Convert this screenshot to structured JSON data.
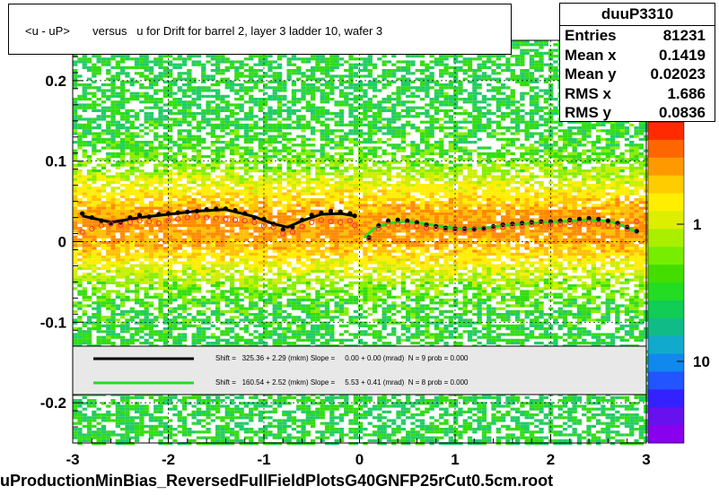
{
  "title": "<u - uP>       versus   u for Drift for barrel 2, layer 3 ladder 10, wafer 3",
  "footer": "uProductionMinBias_ReversedFullFieldPlotsG40GNFP25rCut0.5cm.root",
  "stats": {
    "name": "duuP3310",
    "rows": [
      {
        "label": "Entries",
        "value": "81231"
      },
      {
        "label": "Mean x",
        "value": "0.1419"
      },
      {
        "label": "Mean y",
        "value": "0.02023"
      },
      {
        "label": "RMS x",
        "value": "1.686"
      },
      {
        "label": "RMS y",
        "value": "0.0836"
      }
    ]
  },
  "legend": {
    "entries": [
      {
        "color": "#000000",
        "text": "Shift =   325.36 + 2.29 (mkm) Slope =     0.00 + 0.00 (mrad)  N = 9 prob = 0.000"
      },
      {
        "color": "#22dd22",
        "text": "Shift =   160.54 + 2.52 (mkm) Slope =     5.53 + 0.41 (mrad)  N = 8 prob = 0.000"
      }
    ]
  },
  "chart_data": {
    "type": "heatmap",
    "title": "<u - uP>       versus   u for Drift for barrel 2, layer 3 ladder 10, wafer 3",
    "xlim": [
      -3,
      3
    ],
    "ylim": [
      -0.25,
      0.25
    ],
    "x_ticks": [
      "-3",
      "-2",
      "-1",
      "0",
      "1",
      "2",
      "3"
    ],
    "y_ticks": [
      "-0.2",
      "-0.1",
      "0",
      "0.1",
      "0.2"
    ],
    "z_ticks": [
      "1",
      "10"
    ],
    "grid": true,
    "series": [
      {
        "type": "profile-black",
        "x": [
          -2.9,
          -2.8,
          -2.7,
          -2.6,
          -2.5,
          -2.4,
          -2.3,
          -2.2,
          -2.1,
          -2.0,
          -1.9,
          -1.8,
          -1.7,
          -1.6,
          -1.5,
          -1.4,
          -1.3,
          -1.2,
          -1.1,
          -1.0,
          -0.9,
          -0.8,
          -0.7,
          -0.6,
          -0.5,
          -0.4,
          -0.3,
          -0.2,
          -0.1,
          -0.05,
          0.1,
          0.2,
          0.3,
          0.4,
          0.5,
          0.6,
          0.7,
          0.8,
          0.9,
          1.0,
          1.1,
          1.2,
          1.3,
          1.4,
          1.5,
          1.6,
          1.7,
          1.8,
          1.9,
          2.0,
          2.1,
          2.2,
          2.3,
          2.4,
          2.5,
          2.6,
          2.7,
          2.8,
          2.9
        ],
        "y": [
          0.035,
          0.03,
          0.026,
          0.023,
          0.024,
          0.03,
          0.033,
          0.031,
          0.034,
          0.035,
          0.036,
          0.037,
          0.038,
          0.04,
          0.041,
          0.041,
          0.039,
          0.035,
          0.03,
          0.028,
          0.022,
          0.015,
          0.018,
          0.027,
          0.033,
          0.036,
          0.038,
          0.037,
          0.035,
          0.032,
          0.005,
          0.02,
          0.026,
          0.027,
          0.026,
          0.024,
          0.021,
          0.019,
          0.017,
          0.016,
          0.016,
          0.016,
          0.017,
          0.019,
          0.021,
          0.022,
          0.023,
          0.024,
          0.025,
          0.025,
          0.026,
          0.027,
          0.028,
          0.029,
          0.028,
          0.026,
          0.023,
          0.018,
          0.013
        ]
      },
      {
        "type": "profile-red",
        "x": [
          -2.9,
          -2.8,
          -2.7,
          -2.6,
          -2.5,
          -2.4,
          -2.3,
          -2.2,
          -2.1,
          -2.0,
          -1.9,
          -1.8,
          -1.7,
          -1.6,
          -1.5,
          -1.4,
          -1.3,
          -1.2,
          -1.1,
          -1.0,
          -0.9,
          -0.8,
          -0.7,
          -0.6,
          -0.5,
          -0.4,
          -0.3,
          -0.2,
          -0.1,
          -0.05,
          0.1,
          0.2,
          0.3,
          0.4,
          0.5,
          0.6,
          0.7,
          0.8,
          0.9,
          1.0,
          1.1,
          1.2,
          1.3,
          1.4,
          1.5,
          1.6,
          1.7,
          1.8,
          1.9,
          2.0,
          2.1,
          2.2,
          2.3,
          2.4,
          2.5,
          2.6,
          2.7,
          2.8,
          2.9
        ],
        "y": [
          0.012,
          0.016,
          0.02,
          0.022,
          0.021,
          0.024,
          0.026,
          0.025,
          0.023,
          0.026,
          0.028,
          0.03,
          0.031,
          0.03,
          0.029,
          0.028,
          0.027,
          0.026,
          0.024,
          0.02,
          0.018,
          0.01,
          0.012,
          0.019,
          0.024,
          0.027,
          0.025,
          0.024,
          0.026,
          0.02,
          0.003,
          0.016,
          0.021,
          0.022,
          0.021,
          0.019,
          0.017,
          0.016,
          0.015,
          0.014,
          0.014,
          0.015,
          0.016,
          0.017,
          0.018,
          0.019,
          0.02,
          0.021,
          0.022,
          0.021,
          0.022,
          0.024,
          0.023,
          0.024,
          0.022,
          0.02,
          0.019,
          0.016,
          0.025
        ]
      },
      {
        "type": "fit-black",
        "x": [
          -2.9,
          -2.6,
          -2.3,
          -2.0,
          -1.7,
          -1.4,
          -1.1,
          -0.9,
          -0.75,
          -0.6,
          -0.4,
          -0.2,
          -0.05
        ],
        "y": [
          0.032,
          0.024,
          0.03,
          0.034,
          0.038,
          0.04,
          0.031,
          0.022,
          0.018,
          0.026,
          0.034,
          0.035,
          0.032
        ]
      },
      {
        "type": "fit-green",
        "x": [
          0.05,
          0.15,
          0.3,
          0.5,
          0.7,
          0.9,
          1.1,
          1.3,
          1.5,
          1.8,
          2.1,
          2.4,
          2.6,
          2.75,
          2.9
        ],
        "y": [
          0.005,
          0.016,
          0.023,
          0.025,
          0.022,
          0.018,
          0.016,
          0.017,
          0.02,
          0.023,
          0.025,
          0.027,
          0.026,
          0.02,
          0.012
        ]
      }
    ]
  }
}
